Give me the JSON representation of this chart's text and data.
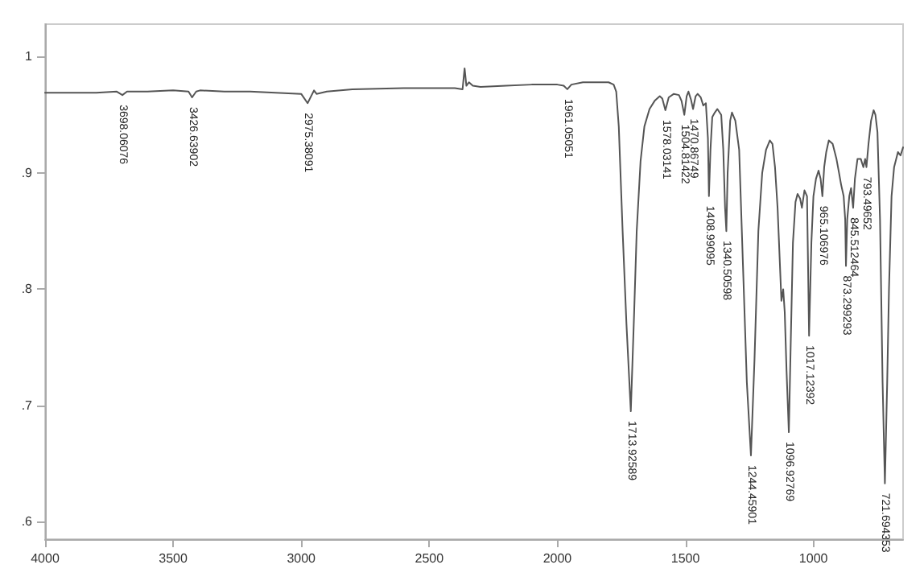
{
  "chart_data": {
    "type": "line",
    "color": "#555555",
    "x": [
      4000,
      3900,
      3800,
      3720,
      3698,
      3680,
      3600,
      3500,
      3440,
      3426,
      3410,
      3395,
      3300,
      3200,
      3100,
      3000,
      2975,
      2950,
      2940,
      2900,
      2800,
      2600,
      2400,
      2370,
      2362,
      2355,
      2345,
      2330,
      2300,
      2200,
      2100,
      2000,
      1975,
      1961,
      1945,
      1900,
      1850,
      1800,
      1780,
      1770,
      1760,
      1745,
      1730,
      1713,
      1700,
      1690,
      1675,
      1660,
      1640,
      1620,
      1600,
      1590,
      1578,
      1565,
      1545,
      1525,
      1515,
      1504,
      1495,
      1488,
      1478,
      1470,
      1460,
      1452,
      1440,
      1430,
      1420,
      1412,
      1408,
      1402,
      1395,
      1385,
      1375,
      1360,
      1352,
      1345,
      1340,
      1335,
      1325,
      1318,
      1305,
      1290,
      1275,
      1260,
      1244,
      1230,
      1215,
      1200,
      1185,
      1170,
      1160,
      1150,
      1140,
      1125,
      1118,
      1112,
      1105,
      1096,
      1088,
      1080,
      1070,
      1062,
      1052,
      1045,
      1035,
      1025,
      1017,
      1008,
      1000,
      990,
      980,
      972,
      965,
      958,
      950,
      940,
      925,
      910,
      900,
      892,
      882,
      876,
      873,
      868,
      860,
      853,
      845,
      838,
      828,
      815,
      805,
      798,
      793,
      785,
      775,
      765,
      758,
      750,
      740,
      730,
      721,
      712,
      705,
      695,
      685,
      670,
      660,
      650
    ],
    "values": [
      0.969,
      0.969,
      0.969,
      0.97,
      0.967,
      0.97,
      0.97,
      0.971,
      0.97,
      0.965,
      0.97,
      0.971,
      0.97,
      0.97,
      0.969,
      0.968,
      0.96,
      0.971,
      0.968,
      0.97,
      0.972,
      0.973,
      0.973,
      0.972,
      0.99,
      0.975,
      0.978,
      0.975,
      0.974,
      0.975,
      0.976,
      0.976,
      0.975,
      0.972,
      0.976,
      0.978,
      0.978,
      0.978,
      0.976,
      0.97,
      0.94,
      0.85,
      0.77,
      0.695,
      0.78,
      0.85,
      0.91,
      0.94,
      0.955,
      0.962,
      0.966,
      0.964,
      0.954,
      0.965,
      0.968,
      0.967,
      0.962,
      0.95,
      0.966,
      0.97,
      0.963,
      0.955,
      0.966,
      0.968,
      0.965,
      0.958,
      0.96,
      0.93,
      0.88,
      0.92,
      0.948,
      0.952,
      0.955,
      0.95,
      0.92,
      0.87,
      0.85,
      0.9,
      0.945,
      0.952,
      0.945,
      0.92,
      0.82,
      0.72,
      0.657,
      0.74,
      0.85,
      0.9,
      0.92,
      0.928,
      0.925,
      0.905,
      0.87,
      0.79,
      0.8,
      0.78,
      0.73,
      0.677,
      0.76,
      0.84,
      0.875,
      0.882,
      0.878,
      0.87,
      0.885,
      0.88,
      0.76,
      0.84,
      0.88,
      0.895,
      0.902,
      0.895,
      0.88,
      0.905,
      0.918,
      0.928,
      0.925,
      0.912,
      0.9,
      0.89,
      0.88,
      0.86,
      0.82,
      0.86,
      0.88,
      0.887,
      0.87,
      0.895,
      0.912,
      0.912,
      0.905,
      0.912,
      0.905,
      0.925,
      0.945,
      0.954,
      0.95,
      0.935,
      0.86,
      0.72,
      0.633,
      0.72,
      0.8,
      0.88,
      0.905,
      0.918,
      0.915,
      0.922
    ],
    "xlim": [
      4000,
      650
    ],
    "xticks": [
      4000,
      3500,
      3000,
      2500,
      2000,
      1500,
      1000
    ],
    "ylim": [
      0.585,
      1.028
    ],
    "yticks": [
      {
        "value": 0.6,
        "label": ".6"
      },
      {
        "value": 0.7,
        "label": ".7"
      },
      {
        "value": 0.8,
        "label": ".8"
      },
      {
        "value": 0.9,
        "label": ".9"
      },
      {
        "value": 1,
        "label": "1"
      }
    ],
    "grid": false,
    "marker": "none",
    "line_style": "solid",
    "annotations": [
      {
        "text": "3698.06076",
        "x": 3698,
        "y": 0.967
      },
      {
        "text": "3426.63902",
        "x": 3426,
        "y": 0.965
      },
      {
        "text": "2975.38091",
        "x": 2975,
        "y": 0.96
      },
      {
        "text": "1961.05051",
        "x": 1961,
        "y": 0.972
      },
      {
        "text": "1713.92589",
        "x": 1713,
        "y": 0.695
      },
      {
        "text": "1578.03141",
        "x": 1578,
        "y": 0.954
      },
      {
        "text": "1504.81422",
        "x": 1504,
        "y": 0.95
      },
      {
        "text": "1470.86749",
        "x": 1470,
        "y": 0.955
      },
      {
        "text": "1408.99095",
        "x": 1408,
        "y": 0.88
      },
      {
        "text": "1340.50598",
        "x": 1340,
        "y": 0.85
      },
      {
        "text": "1244.45901",
        "x": 1244,
        "y": 0.657
      },
      {
        "text": "1096.92769",
        "x": 1096,
        "y": 0.677
      },
      {
        "text": "1017.12392",
        "x": 1017,
        "y": 0.76
      },
      {
        "text": "965.106976",
        "x": 965,
        "y": 0.88
      },
      {
        "text": "873.299293",
        "x": 873,
        "y": 0.82
      },
      {
        "text": "845.512464",
        "x": 845,
        "y": 0.87
      },
      {
        "text": "793.49652",
        "x": 793,
        "y": 0.905
      },
      {
        "text": "721.694353",
        "x": 721,
        "y": 0.633
      }
    ]
  }
}
